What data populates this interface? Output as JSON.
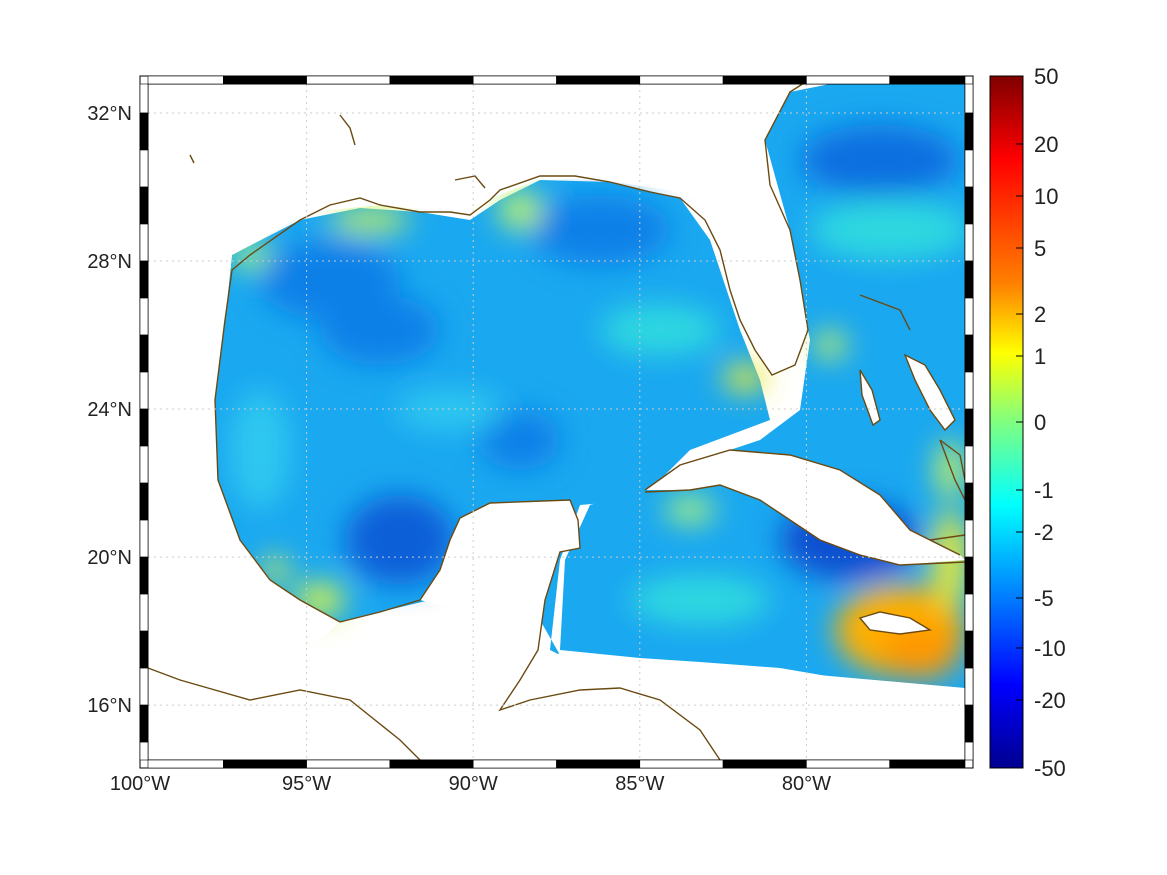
{
  "map": {
    "lon_ticks": [
      {
        "value": -100,
        "label": "100°W"
      },
      {
        "value": -95,
        "label": "95°W"
      },
      {
        "value": -90,
        "label": "90°W"
      },
      {
        "value": -85,
        "label": "85°W"
      },
      {
        "value": -80,
        "label": "80°W"
      }
    ],
    "lat_ticks": [
      {
        "value": 32,
        "label": "32°N"
      },
      {
        "value": 28,
        "label": "28°N"
      },
      {
        "value": 24,
        "label": "24°N"
      },
      {
        "value": 20,
        "label": "20°N"
      },
      {
        "value": 16,
        "label": "16°N"
      }
    ],
    "lon_range": [
      -100,
      -75
    ],
    "lat_range": [
      14.3,
      33
    ],
    "grid": true,
    "coastline_color": "#6b4a12",
    "land_color": "#ffffff"
  },
  "colorbar": {
    "ticks": [
      "50",
      "20",
      "10",
      "5",
      "2",
      "1",
      "0",
      "-1",
      "-2",
      "-5",
      "-10",
      "-20",
      "-50"
    ],
    "colormap": "jet",
    "colors": [
      "#7f0000",
      "#ff0000",
      "#ff8000",
      "#ffff00",
      "#80ff80",
      "#00ffff",
      "#0080ff",
      "#0000ff",
      "#00008f"
    ]
  }
}
